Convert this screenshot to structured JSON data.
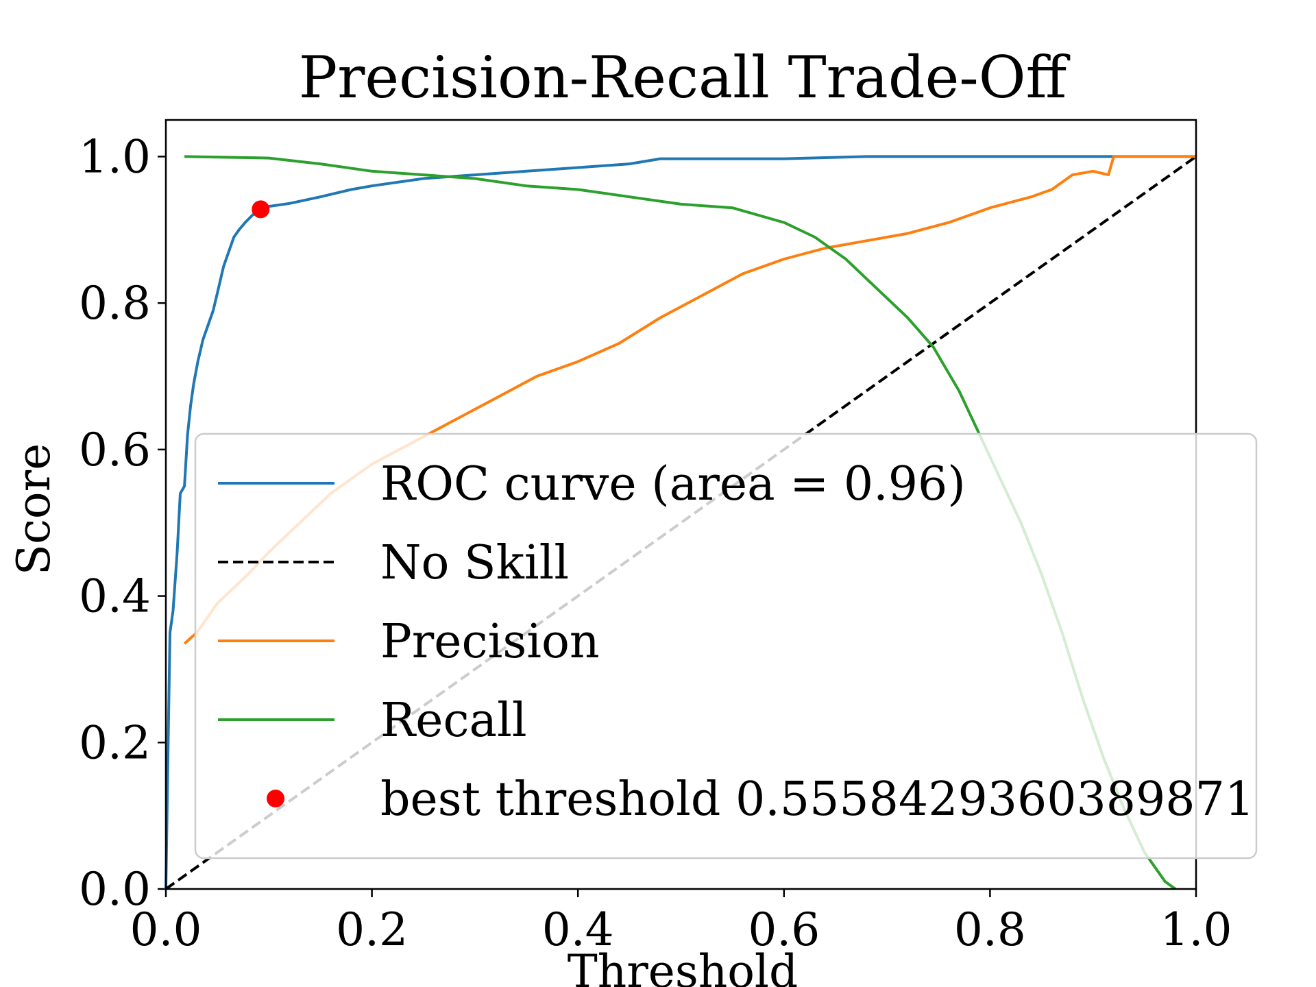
{
  "chart_data": {
    "type": "line",
    "title": "Precision-Recall Trade-Off",
    "xlabel": "Threshold",
    "ylabel": "Score",
    "xlim": [
      0.0,
      1.0
    ],
    "ylim": [
      0.0,
      1.05
    ],
    "x_ticks": [
      "0.0",
      "0.2",
      "0.4",
      "0.6",
      "0.8",
      "1.0"
    ],
    "y_ticks": [
      "0.0",
      "0.2",
      "0.4",
      "0.6",
      "0.8",
      "1.0"
    ],
    "grid": false,
    "legend_position": "lower-right",
    "series": [
      {
        "name": "ROC curve (area = 0.96)",
        "color": "#1f77b4",
        "style": "solid",
        "points": [
          [
            0.0,
            0.0
          ],
          [
            0.002,
            0.18
          ],
          [
            0.004,
            0.35
          ],
          [
            0.007,
            0.38
          ],
          [
            0.011,
            0.46
          ],
          [
            0.014,
            0.54
          ],
          [
            0.018,
            0.55
          ],
          [
            0.021,
            0.62
          ],
          [
            0.024,
            0.66
          ],
          [
            0.027,
            0.69
          ],
          [
            0.031,
            0.72
          ],
          [
            0.036,
            0.75
          ],
          [
            0.041,
            0.77
          ],
          [
            0.046,
            0.79
          ],
          [
            0.051,
            0.82
          ],
          [
            0.056,
            0.85
          ],
          [
            0.061,
            0.87
          ],
          [
            0.066,
            0.89
          ],
          [
            0.071,
            0.9
          ],
          [
            0.077,
            0.91
          ],
          [
            0.084,
            0.92
          ],
          [
            0.092,
            0.928
          ],
          [
            0.1,
            0.932
          ],
          [
            0.12,
            0.936
          ],
          [
            0.15,
            0.945
          ],
          [
            0.18,
            0.955
          ],
          [
            0.2,
            0.96
          ],
          [
            0.25,
            0.97
          ],
          [
            0.3,
            0.975
          ],
          [
            0.35,
            0.98
          ],
          [
            0.4,
            0.985
          ],
          [
            0.45,
            0.99
          ],
          [
            0.48,
            0.997
          ],
          [
            0.6,
            0.997
          ],
          [
            0.68,
            1.0
          ],
          [
            1.0,
            1.0
          ]
        ]
      },
      {
        "name": "No Skill",
        "color": "#000000",
        "style": "dashed",
        "points": [
          [
            0.0,
            0.0
          ],
          [
            1.0,
            1.0
          ]
        ]
      },
      {
        "name": "Precision",
        "color": "#ff7f0e",
        "style": "solid",
        "points": [
          [
            0.018,
            0.335
          ],
          [
            0.03,
            0.35
          ],
          [
            0.05,
            0.39
          ],
          [
            0.08,
            0.43
          ],
          [
            0.1,
            0.46
          ],
          [
            0.13,
            0.5
          ],
          [
            0.16,
            0.54
          ],
          [
            0.2,
            0.58
          ],
          [
            0.24,
            0.61
          ],
          [
            0.28,
            0.64
          ],
          [
            0.32,
            0.67
          ],
          [
            0.36,
            0.7
          ],
          [
            0.4,
            0.72
          ],
          [
            0.44,
            0.745
          ],
          [
            0.48,
            0.78
          ],
          [
            0.52,
            0.81
          ],
          [
            0.56,
            0.84
          ],
          [
            0.6,
            0.86
          ],
          [
            0.64,
            0.875
          ],
          [
            0.68,
            0.885
          ],
          [
            0.72,
            0.895
          ],
          [
            0.76,
            0.91
          ],
          [
            0.8,
            0.93
          ],
          [
            0.84,
            0.945
          ],
          [
            0.86,
            0.955
          ],
          [
            0.88,
            0.975
          ],
          [
            0.9,
            0.98
          ],
          [
            0.915,
            0.975
          ],
          [
            0.92,
            1.0
          ],
          [
            1.0,
            1.0
          ]
        ]
      },
      {
        "name": "Recall",
        "color": "#2ca02c",
        "style": "solid",
        "points": [
          [
            0.018,
            1.0
          ],
          [
            0.1,
            0.998
          ],
          [
            0.15,
            0.99
          ],
          [
            0.2,
            0.98
          ],
          [
            0.25,
            0.975
          ],
          [
            0.3,
            0.97
          ],
          [
            0.35,
            0.96
          ],
          [
            0.4,
            0.955
          ],
          [
            0.45,
            0.945
          ],
          [
            0.5,
            0.935
          ],
          [
            0.55,
            0.93
          ],
          [
            0.6,
            0.91
          ],
          [
            0.63,
            0.89
          ],
          [
            0.66,
            0.86
          ],
          [
            0.69,
            0.82
          ],
          [
            0.72,
            0.78
          ],
          [
            0.745,
            0.74
          ],
          [
            0.77,
            0.68
          ],
          [
            0.79,
            0.62
          ],
          [
            0.81,
            0.56
          ],
          [
            0.83,
            0.5
          ],
          [
            0.85,
            0.43
          ],
          [
            0.87,
            0.35
          ],
          [
            0.89,
            0.26
          ],
          [
            0.91,
            0.18
          ],
          [
            0.93,
            0.11
          ],
          [
            0.95,
            0.05
          ],
          [
            0.97,
            0.01
          ],
          [
            0.98,
            0.0
          ]
        ]
      },
      {
        "name": "best threshold 0.5558429360389871",
        "color": "#ff0000",
        "style": "marker",
        "points": [
          [
            0.092,
            0.928
          ]
        ]
      }
    ]
  }
}
